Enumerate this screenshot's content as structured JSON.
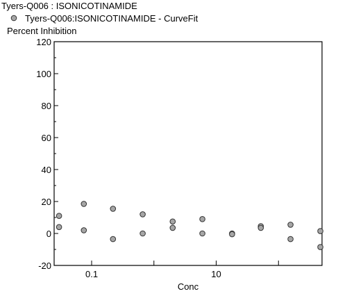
{
  "chart_data": {
    "type": "scatter",
    "title": "Tyers-Q006  : ISONICOTINAMIDE",
    "legend": [
      {
        "label": "Tyers-Q006:ISONICOTINAMIDE - CurveFit",
        "marker": "circle",
        "color": "#a6a6a6"
      }
    ],
    "xlabel": "Conc",
    "ylabel": "Percent  Inhibition",
    "x_scale": "log",
    "xlim": [
      0.025,
      500
    ],
    "ylim": [
      -20,
      120
    ],
    "y_ticks": [
      -20,
      0,
      20,
      40,
      60,
      80,
      100,
      120
    ],
    "x_ticks": [
      0.1,
      10
    ],
    "x_tick_labels": [
      "0.1",
      "10"
    ],
    "grid": false,
    "legend_position": "top-left",
    "series": [
      {
        "name": "Tyers-Q006:ISONICOTINAMIDE - CurveFit",
        "color": "#a6a6a6",
        "points": [
          [
            0.03,
            11
          ],
          [
            0.03,
            4
          ],
          [
            0.075,
            18.5
          ],
          [
            0.075,
            2
          ],
          [
            0.22,
            15.5
          ],
          [
            0.22,
            -3.5
          ],
          [
            0.66,
            12
          ],
          [
            0.66,
            0
          ],
          [
            2.0,
            7.5
          ],
          [
            2.0,
            3.5
          ],
          [
            6.0,
            9
          ],
          [
            6.0,
            0
          ],
          [
            18,
            0
          ],
          [
            18,
            -0.5
          ],
          [
            52,
            4.5
          ],
          [
            52,
            3.5
          ],
          [
            156,
            5.5
          ],
          [
            156,
            -3.5
          ],
          [
            470,
            1.5
          ],
          [
            470,
            -8.5
          ]
        ]
      }
    ]
  }
}
